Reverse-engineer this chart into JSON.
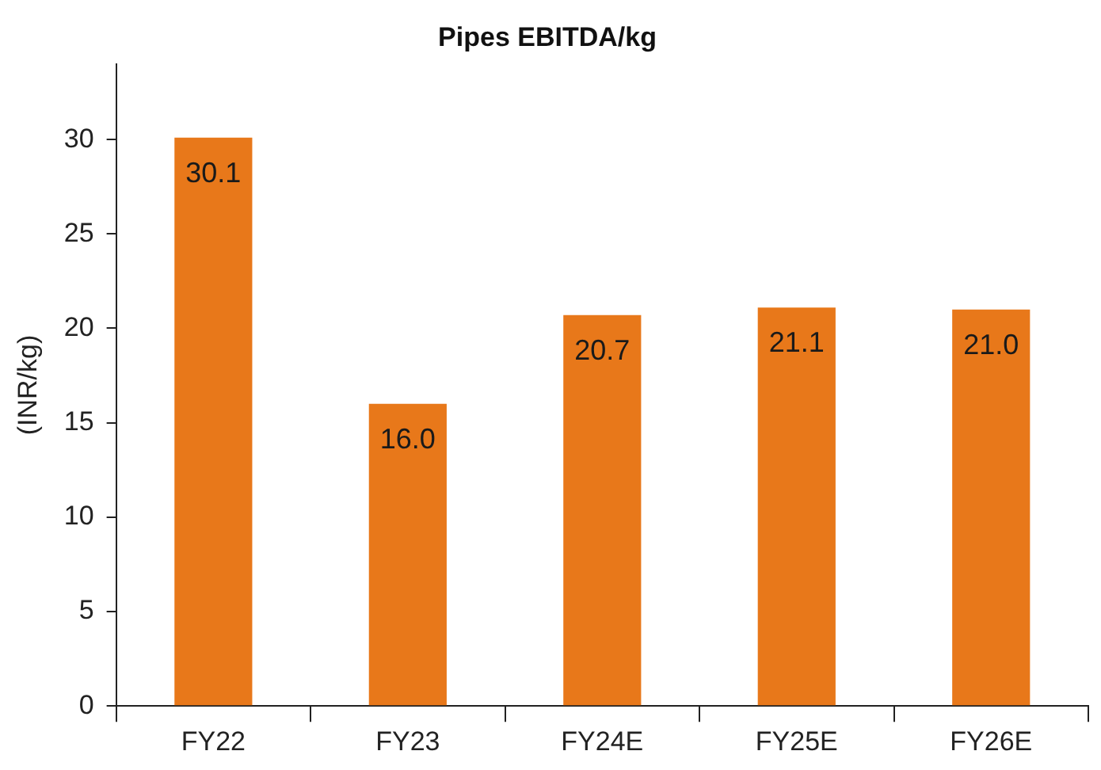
{
  "chart_data": {
    "type": "bar",
    "title": "Pipes EBITDA/kg",
    "ylabel": "(INR/kg)",
    "categories": [
      "FY22",
      "FY23",
      "FY24E",
      "FY25E",
      "FY26E"
    ],
    "values": [
      30.1,
      16.0,
      20.7,
      21.1,
      21.0
    ],
    "value_labels": [
      "30.1",
      "16.0",
      "20.7",
      "21.1",
      "21.0"
    ],
    "color": "#e8781a",
    "ylim": [
      0,
      34
    ],
    "yticks": [
      0,
      5,
      10,
      15,
      20,
      25,
      30
    ],
    "grid": false,
    "legend": false
  }
}
